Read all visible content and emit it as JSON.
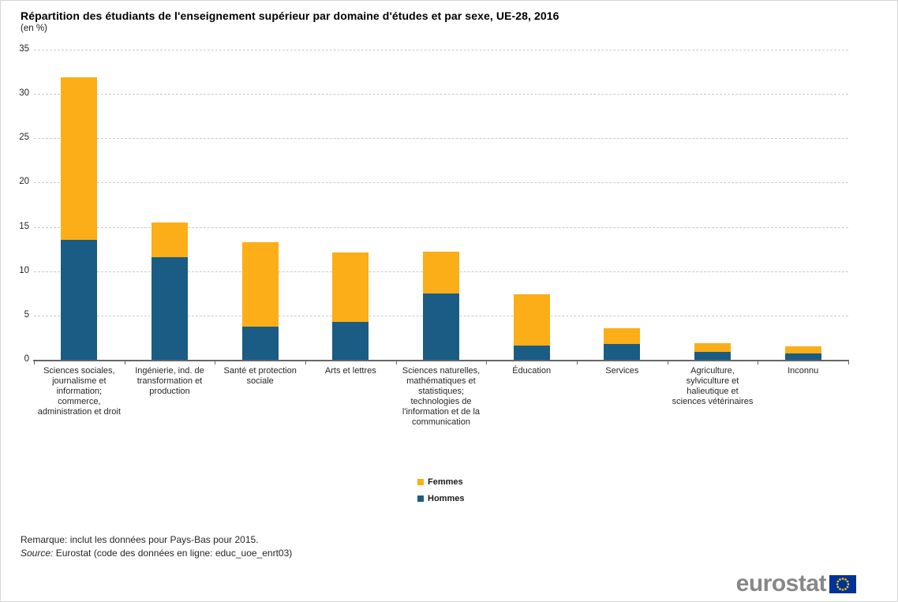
{
  "page": {
    "title": "Répartition des étudiants de l'enseignement supérieur par domaine d'études et par sexe, UE-28, 2016",
    "subtitle": "(en %)"
  },
  "chart_data": {
    "type": "bar",
    "stacked": true,
    "title": "Répartition des étudiants de l'enseignement supérieur par domaine d'études et par sexe, UE-28, 2016",
    "subtitle": "(en %)",
    "xlabel": "",
    "ylabel": "",
    "ylim": [
      0,
      35
    ],
    "ytick_step": 5,
    "grid": "horizontal-dashed",
    "legend_position": "bottom-center",
    "categories": [
      "Sciences sociales, journalisme et information; commerce, administration et droit",
      "Ingénierie, ind. de transformation et production",
      "Santé et protection sociale",
      "Arts et lettres",
      "Sciences naturelles, mathématiques et statistiques; technologies de l'information et de la communication",
      "Éducation",
      "Services",
      "Agriculture, sylviculture et halieutique et sciences vétérinaires",
      "Inconnu"
    ],
    "series": [
      {
        "name": "Hommes",
        "color": "#1A5C84",
        "values": [
          13.5,
          11.6,
          3.7,
          4.3,
          7.5,
          1.6,
          1.8,
          0.9,
          0.7
        ]
      },
      {
        "name": "Femmes",
        "color": "#FBAE17",
        "values": [
          18.4,
          3.9,
          9.6,
          7.8,
          4.7,
          5.8,
          1.8,
          1.0,
          0.8
        ]
      }
    ],
    "totals": [
      31.9,
      15.5,
      13.3,
      12.1,
      12.2,
      7.4,
      3.6,
      1.9,
      1.5
    ]
  },
  "legend": {
    "items": [
      {
        "label": "Femmes",
        "color": "#FBAE17"
      },
      {
        "label": "Hommes",
        "color": "#1A5C84"
      }
    ]
  },
  "notes": {
    "remark": "Remarque: inclut les données pour Pays-Bas pour 2015.",
    "source_label": "Source:",
    "source_text": " Eurostat (code des données en ligne: educ_uoe_enrt03)"
  },
  "logo": {
    "text": "eurostat",
    "flag_blue": "#003399",
    "flag_star": "#FFCC00"
  },
  "colors": {
    "femmes": "#FBAE17",
    "hommes": "#1A5C84",
    "gridline": "#cccccc",
    "axis": "#666666"
  }
}
